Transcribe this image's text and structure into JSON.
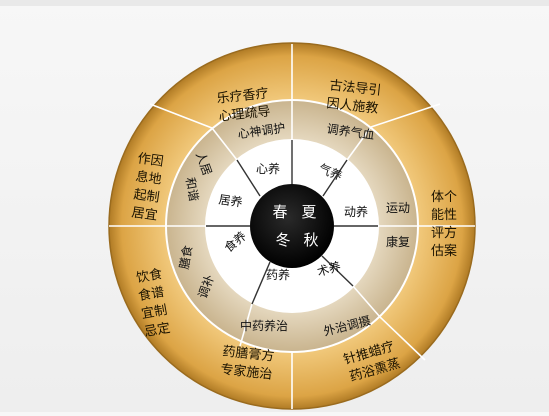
{
  "diagram": {
    "outer": [
      {
        "id": "top-left",
        "lines": [
          "乐疗香疗",
          "心理疏导"
        ]
      },
      {
        "id": "top-right",
        "lines": [
          "古法导引",
          "因人施教"
        ]
      },
      {
        "id": "right",
        "lines": [
          "体个",
          "能性",
          "评方",
          "估案"
        ]
      },
      {
        "id": "bottom-right",
        "lines": [
          "针推蜡疗",
          "药浴熏蒸"
        ]
      },
      {
        "id": "bottom-left",
        "lines": [
          "药膳膏方",
          "专家施治"
        ]
      },
      {
        "id": "left-lower",
        "lines": [
          "饮食",
          "食谱",
          "宜制",
          "忌定"
        ]
      },
      {
        "id": "left-upper",
        "lines": [
          "作因",
          "息地",
          "起制",
          "居宜"
        ]
      }
    ],
    "middle": [
      {
        "id": "top-left",
        "text": "心神调护"
      },
      {
        "id": "top-right",
        "text": "调养气血"
      },
      {
        "id": "right",
        "lines": [
          "运动",
          "康复"
        ]
      },
      {
        "id": "bottom-right",
        "text": "外治调摄"
      },
      {
        "id": "bottom-left",
        "text": "中药养治"
      },
      {
        "id": "left-lower",
        "lines": [
          "膳食",
          "调补"
        ]
      },
      {
        "id": "left-upper",
        "lines": [
          "人居",
          "和谐"
        ]
      }
    ],
    "inner": [
      {
        "id": "top-left",
        "text": "心养"
      },
      {
        "id": "top-right",
        "text": "气养"
      },
      {
        "id": "right",
        "text": "动养"
      },
      {
        "id": "bottom-right",
        "text": "术养"
      },
      {
        "id": "bottom",
        "text": "药养"
      },
      {
        "id": "left-lower",
        "text": "食养"
      },
      {
        "id": "left-upper",
        "text": "居养"
      }
    ],
    "center": {
      "spring": "春",
      "summer": "夏",
      "winter": "冬",
      "autumn": "秋"
    },
    "colors": {
      "outer": "#e3ad4d",
      "outer_dark": "#b07b25",
      "middle": "#d8c9ad",
      "middle_dark": "#c4b08a",
      "inner": "#ffffff",
      "center": "#000000",
      "divider": "#ffffff"
    }
  }
}
